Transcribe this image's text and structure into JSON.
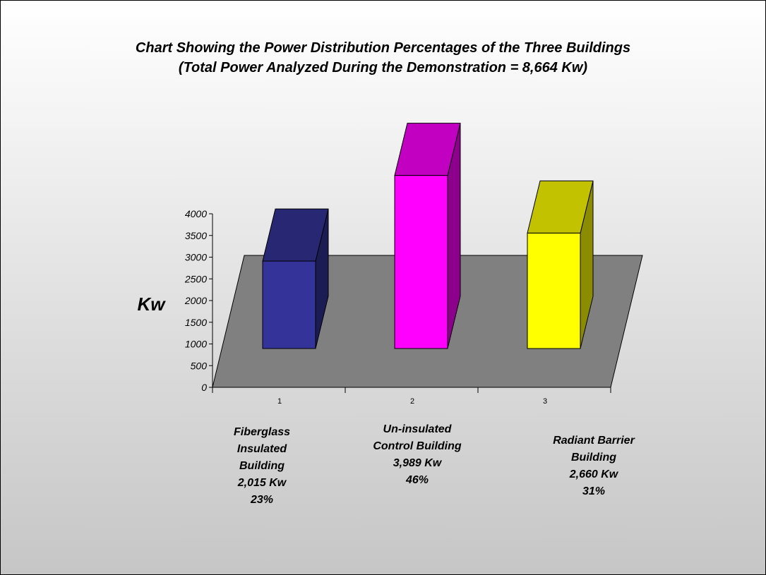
{
  "slide": {
    "title_line1": "Chart Showing the Power Distribution Percentages of the Three Buildings",
    "title_line2": "(Total Power Analyzed During the Demonstration = 8,664 Kw)"
  },
  "chart_data": {
    "type": "bar",
    "style": "3d-column",
    "ylabel": "Kw",
    "ylim": [
      0,
      4000
    ],
    "y_ticks": [
      "0",
      "500",
      "1000",
      "1500",
      "2000",
      "2500",
      "3000",
      "3500",
      "4000"
    ],
    "categories": [
      "1",
      "2",
      "3"
    ],
    "values": [
      2015,
      3989,
      2660
    ],
    "colors": [
      "#333399",
      "#ff00ff",
      "#ffff00"
    ],
    "floor_color": "#808080",
    "grid": false,
    "legend": "none"
  },
  "annotations": [
    {
      "lines": [
        "Fiberglass",
        "Insulated",
        "Building",
        "2,015 Kw",
        "23%"
      ]
    },
    {
      "lines": [
        "Un-insulated",
        "Control Building",
        "3,989 Kw",
        "46%"
      ]
    },
    {
      "lines": [
        "Radiant Barrier",
        "Building",
        "2,660 Kw",
        "31%"
      ]
    }
  ]
}
